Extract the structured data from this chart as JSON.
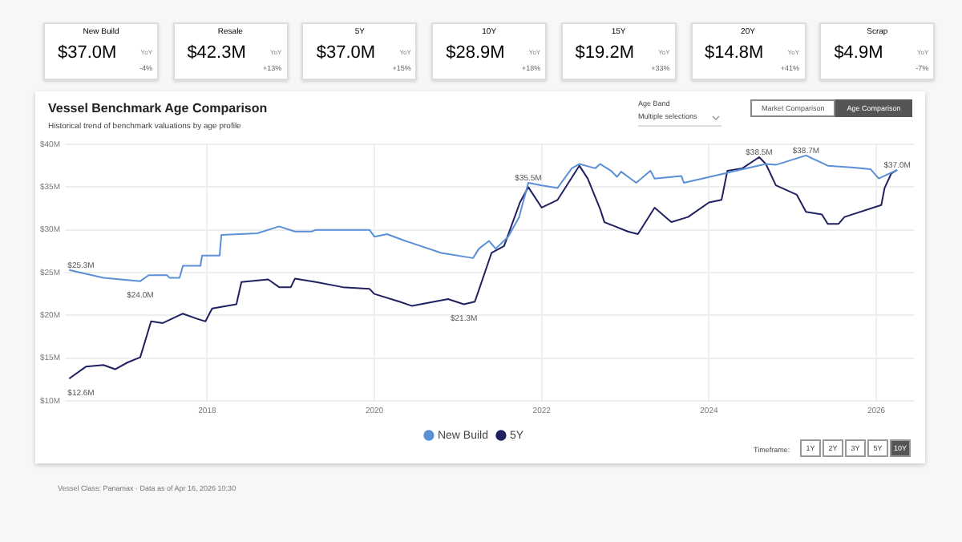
{
  "chart_data": [
    {
      "type": "other",
      "title": "New Build",
      "annotations": [
        "$37.0M",
        "YoY",
        "-4%"
      ]
    },
    {
      "type": "other",
      "title": "Resale",
      "annotations": [
        "$42.3M",
        "YoY",
        "+13%"
      ]
    },
    {
      "type": "other",
      "title": "5Y",
      "annotations": [
        "$37.0M",
        "YoY",
        "+15%"
      ]
    },
    {
      "type": "other",
      "title": "10Y",
      "annotations": [
        "$28.9M",
        "YoY",
        "+18%"
      ]
    },
    {
      "type": "other",
      "title": "15Y",
      "annotations": [
        "$19.2M",
        "YoY",
        "+33%"
      ]
    },
    {
      "type": "other",
      "title": "20Y",
      "annotations": [
        "$14.8M",
        "YoY",
        "+41%"
      ]
    },
    {
      "type": "other",
      "title": "Scrap",
      "annotations": [
        "$4.9M",
        "YoY",
        "-7%"
      ]
    },
    {
      "type": "line",
      "title": "Vessel Benchmark Age Comparison",
      "subtitle": "Historical trend of benchmark valuations by age profile",
      "series": [
        {
          "name": "New Build",
          "color": "#5b8fd6",
          "x": [
            2016.35,
            2016.76,
            2017.2,
            2017.3,
            2017.52,
            2017.55,
            2017.67,
            2017.71,
            2017.92,
            2017.94,
            2018.15,
            2018.17,
            2018.6,
            2018.86,
            2019.05,
            2019.25,
            2019.3,
            2019.94,
            2020.0,
            2020.15,
            2020.37,
            2020.8,
            2021.18,
            2021.25,
            2021.37,
            2021.45,
            2021.6,
            2021.73,
            2021.84,
            2022.0,
            2022.19,
            2022.36,
            2022.45,
            2022.64,
            2022.7,
            2022.83,
            2022.9,
            2022.95,
            2023.13,
            2023.3,
            2023.35,
            2023.67,
            2023.7,
            2024.19,
            2024.32,
            2024.68,
            2024.8,
            2025.16,
            2025.42,
            2025.7,
            2025.93,
            2026.03,
            2026.25
          ],
          "values": [
            25.3,
            24.4,
            24.0,
            24.7,
            24.7,
            24.4,
            24.4,
            25.8,
            25.8,
            27.0,
            27.0,
            29.4,
            29.6,
            30.4,
            29.8,
            29.8,
            30.0,
            30.0,
            29.2,
            29.5,
            28.7,
            27.3,
            26.7,
            27.8,
            28.7,
            27.8,
            29.2,
            31.5,
            35.5,
            35.2,
            34.9,
            37.2,
            37.7,
            37.2,
            37.7,
            36.9,
            36.2,
            36.8,
            35.5,
            36.9,
            36.0,
            36.3,
            35.5,
            36.6,
            36.9,
            37.7,
            37.6,
            38.7,
            37.5,
            37.3,
            37.1,
            36.0,
            37.0
          ]
        },
        {
          "name": "5Y",
          "color": "#1f2160",
          "x": [
            2016.35,
            2016.55,
            2016.76,
            2016.9,
            2017.05,
            2017.2,
            2017.33,
            2017.47,
            2017.71,
            2017.88,
            2017.98,
            2018.06,
            2018.35,
            2018.41,
            2018.73,
            2018.86,
            2019.0,
            2019.05,
            2019.3,
            2019.62,
            2019.94,
            2020.0,
            2020.3,
            2020.45,
            2020.88,
            2021.07,
            2021.2,
            2021.25,
            2021.4,
            2021.55,
            2021.74,
            2021.84,
            2022.0,
            2022.19,
            2022.45,
            2022.55,
            2022.7,
            2022.75,
            2023.03,
            2023.15,
            2023.35,
            2023.55,
            2023.75,
            2024.0,
            2024.15,
            2024.22,
            2024.4,
            2024.6,
            2024.68,
            2024.8,
            2025.05,
            2025.16,
            2025.35,
            2025.42,
            2025.55,
            2025.62,
            2026.06,
            2026.1,
            2026.18,
            2026.25
          ],
          "values": [
            12.6,
            14.0,
            14.2,
            13.7,
            14.5,
            15.1,
            19.3,
            19.1,
            20.2,
            19.6,
            19.3,
            20.8,
            21.3,
            23.9,
            24.2,
            23.3,
            23.3,
            24.3,
            23.9,
            23.3,
            23.1,
            22.5,
            21.6,
            21.1,
            21.9,
            21.3,
            21.6,
            23.0,
            27.3,
            28.1,
            33.2,
            35.0,
            32.6,
            33.5,
            37.5,
            36.0,
            32.4,
            30.9,
            29.8,
            29.5,
            32.6,
            30.9,
            31.5,
            33.2,
            33.5,
            36.9,
            37.2,
            38.5,
            37.7,
            35.2,
            34.1,
            32.1,
            31.8,
            30.7,
            30.7,
            31.5,
            32.9,
            34.9,
            36.6,
            37.0
          ]
        }
      ],
      "xlim": [
        2016.3,
        2026.45
      ],
      "xticks": [
        2018,
        2020,
        2022,
        2024,
        2026
      ],
      "ylim": [
        10,
        40
      ],
      "yticks": [
        {
          "value": 10,
          "label": "$10M"
        },
        {
          "value": 15,
          "label": "$15M"
        },
        {
          "value": 20,
          "label": "$20M"
        },
        {
          "value": 25,
          "label": "$25M"
        },
        {
          "value": 30,
          "label": "$30M"
        },
        {
          "value": 35,
          "label": "$35M"
        },
        {
          "value": 40,
          "label": "$40M"
        }
      ],
      "grid": true,
      "legend": "bottom",
      "annotations": [
        {
          "text": "$25.3M",
          "x": 2016.35,
          "y": 25.3
        },
        {
          "text": "$24.0M",
          "x": 2017.2,
          "y": 24.0
        },
        {
          "text": "$12.6M",
          "x": 2016.35,
          "y": 12.6
        },
        {
          "text": "$21.3M",
          "x": 2021.07,
          "y": 21.3
        },
        {
          "text": "$35.5M",
          "x": 2021.84,
          "y": 35.5
        },
        {
          "text": "$38.5M",
          "x": 2024.6,
          "y": 38.5
        },
        {
          "text": "$38.7M",
          "x": 2025.16,
          "y": 38.7
        },
        {
          "text": "$37.0M",
          "x": 2026.25,
          "y": 37.0
        },
        "Age Band",
        "Multiple selections",
        "Market Comparison",
        "Age Comparison",
        "Timeframe:",
        "1Y",
        "2Y",
        "3Y",
        "5Y",
        "10Y",
        "Vessel Class: Panamax · Data as of Apr 16, 2026 10:30"
      ]
    }
  ]
}
